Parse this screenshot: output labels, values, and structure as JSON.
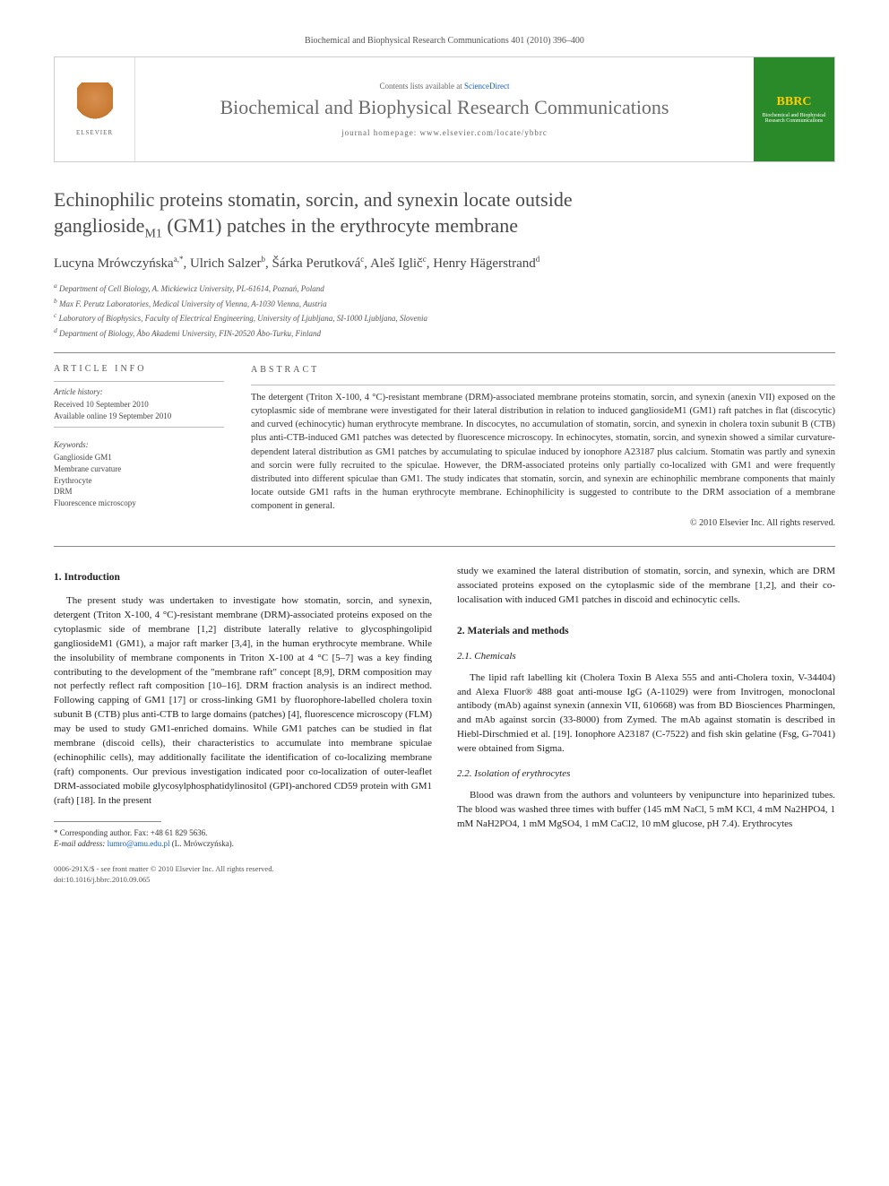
{
  "header_citation": "Biochemical and Biophysical Research Communications 401 (2010) 396–400",
  "banner": {
    "contents_text": "Contents lists available at ",
    "contents_link": "ScienceDirect",
    "journal_title": "Biochemical and Biophysical Research Communications",
    "homepage_label": "journal homepage: ",
    "homepage_url": "www.elsevier.com/locate/ybbrc",
    "elsevier_label": "ELSEVIER",
    "cover_logo": "BBRC",
    "cover_text": "Biochemical and Biophysical Research Communications"
  },
  "title_parts": {
    "line1": "Echinophilic proteins stomatin, sorcin, and synexin locate outside",
    "line2_pre": "ganglioside",
    "line2_sub": "M1",
    "line2_post": " (GM1) patches in the erythrocyte membrane"
  },
  "authors": [
    {
      "name": "Lucyna Mrówczyńska",
      "sup": "a,*"
    },
    {
      "name": "Ulrich Salzer",
      "sup": "b"
    },
    {
      "name": "Šárka Perutková",
      "sup": "c"
    },
    {
      "name": "Aleš Iglič",
      "sup": "c"
    },
    {
      "name": "Henry Hägerstrand",
      "sup": "d"
    }
  ],
  "affiliations": [
    {
      "sup": "a",
      "text": "Department of Cell Biology, A. Mickiewicz University, PL-61614, Poznań, Poland"
    },
    {
      "sup": "b",
      "text": "Max F. Perutz Laboratories, Medical University of Vienna, A-1030 Vienna, Austria"
    },
    {
      "sup": "c",
      "text": "Laboratory of Biophysics, Faculty of Electrical Engineering, University of Ljubljana, SI-1000 Ljubljana, Slovenia"
    },
    {
      "sup": "d",
      "text": "Department of Biology, Åbo Akademi University, FIN-20520 Åbo-Turku, Finland"
    }
  ],
  "article_info": {
    "heading": "ARTICLE INFO",
    "history_heading": "Article history:",
    "received": "Received 10 September 2010",
    "online": "Available online 19 September 2010",
    "keywords_heading": "Keywords:",
    "keywords": [
      "Ganglioside GM1",
      "Membrane curvature",
      "Erythrocyte",
      "DRM",
      "Fluorescence microscopy"
    ]
  },
  "abstract": {
    "heading": "ABSTRACT",
    "body": "The detergent (Triton X-100, 4 °C)-resistant membrane (DRM)-associated membrane proteins stomatin, sorcin, and synexin (anexin VII) exposed on the cytoplasmic side of membrane were investigated for their lateral distribution in relation to induced gangliosideM1 (GM1) raft patches in flat (discocytic) and curved (echinocytic) human erythrocyte membrane. In discocytes, no accumulation of stomatin, sorcin, and synexin in cholera toxin subunit B (CTB) plus anti-CTB-induced GM1 patches was detected by fluorescence microscopy. In echinocytes, stomatin, sorcin, and synexin showed a similar curvature-dependent lateral distribution as GM1 patches by accumulating to spiculae induced by ionophore A23187 plus calcium. Stomatin was partly and synexin and sorcin were fully recruited to the spiculae. However, the DRM-associated proteins only partially co-localized with GM1 and were frequently distributed into different spiculae than GM1. The study indicates that stomatin, sorcin, and synexin are echinophilic membrane components that mainly locate outside GM1 rafts in the human erythrocyte membrane. Echinophilicity is suggested to contribute to the DRM association of a membrane component in general.",
    "copyright": "© 2010 Elsevier Inc. All rights reserved."
  },
  "sections": {
    "intro_heading": "1. Introduction",
    "intro_body": "The present study was undertaken to investigate how stomatin, sorcin, and synexin, detergent (Triton X-100, 4 °C)-resistant membrane (DRM)-associated proteins exposed on the cytoplasmic side of membrane [1,2] distribute laterally relative to glycosphingolipid gangliosideM1 (GM1), a major raft marker [3,4], in the human erythrocyte membrane. While the insolubility of membrane components in Triton X-100 at 4 °C [5–7] was a key finding contributing to the development of the \"membrane raft\" concept [8,9], DRM composition may not perfectly reflect raft composition [10–16]. DRM fraction analysis is an indirect method. Following capping of GM1 [17] or cross-linking GM1 by fluorophore-labelled cholera toxin subunit B (CTB) plus anti-CTB to large domains (patches) [4], fluorescence microscopy (FLM) may be used to study GM1-enriched domains. While GM1 patches can be studied in flat membrane (discoid cells), their characteristics to accumulate into membrane spiculae (echinophilic cells), may additionally facilitate the identification of co-localizing membrane (raft) components. Our previous investigation indicated poor co-localization of outer-leaflet DRM-associated mobile glycosylphosphatidylinositol (GPI)-anchored CD59 protein with GM1 (raft) [18]. In the present",
    "intro_cont": "study we examined the lateral distribution of stomatin, sorcin, and synexin, which are DRM associated proteins exposed on the cytoplasmic side of the membrane [1,2], and their co-localisation with induced GM1 patches in discoid and echinocytic cells.",
    "methods_heading": "2. Materials and methods",
    "chemicals_heading": "2.1. Chemicals",
    "chemicals_body": "The lipid raft labelling kit (Cholera Toxin B Alexa 555 and anti-Cholera toxin, V-34404) and Alexa Fluor® 488 goat anti-mouse IgG (A-11029) were from Invitrogen, monoclonal antibody (mAb) against synexin (annexin VII, 610668) was from BD Biosciences Pharmingen, and mAb against sorcin (33-8000) from Zymed. The mAb against stomatin is described in Hiebl-Dirschmied et al. [19]. Ionophore A23187 (C-7522) and fish skin gelatine (Fsg, G-7041) were obtained from Sigma.",
    "isolation_heading": "2.2. Isolation of erythrocytes",
    "isolation_body": "Blood was drawn from the authors and volunteers by venipuncture into heparinized tubes. The blood was washed three times with buffer (145 mM NaCl, 5 mM KCl, 4 mM Na2HPO4, 1 mM NaH2PO4, 1 mM MgSO4, 1 mM CaCl2, 10 mM glucose, pH 7.4). Erythrocytes"
  },
  "footnote": {
    "corresponding": "* Corresponding author. Fax: +48 61 829 5636.",
    "email_label": "E-mail address: ",
    "email": "lumro@amu.edu.pl",
    "email_author": " (L. Mrówczyńska)."
  },
  "footer": {
    "issn": "0006-291X/$ - see front matter © 2010 Elsevier Inc. All rights reserved.",
    "doi": "doi:10.1016/j.bbrc.2010.09.065"
  },
  "colors": {
    "link": "#1060c0",
    "journal_title": "#6b6b6b",
    "cover_bg": "#2a8a2a",
    "cover_logo": "#ffcc00",
    "elsevier_orange": "#d47820"
  }
}
